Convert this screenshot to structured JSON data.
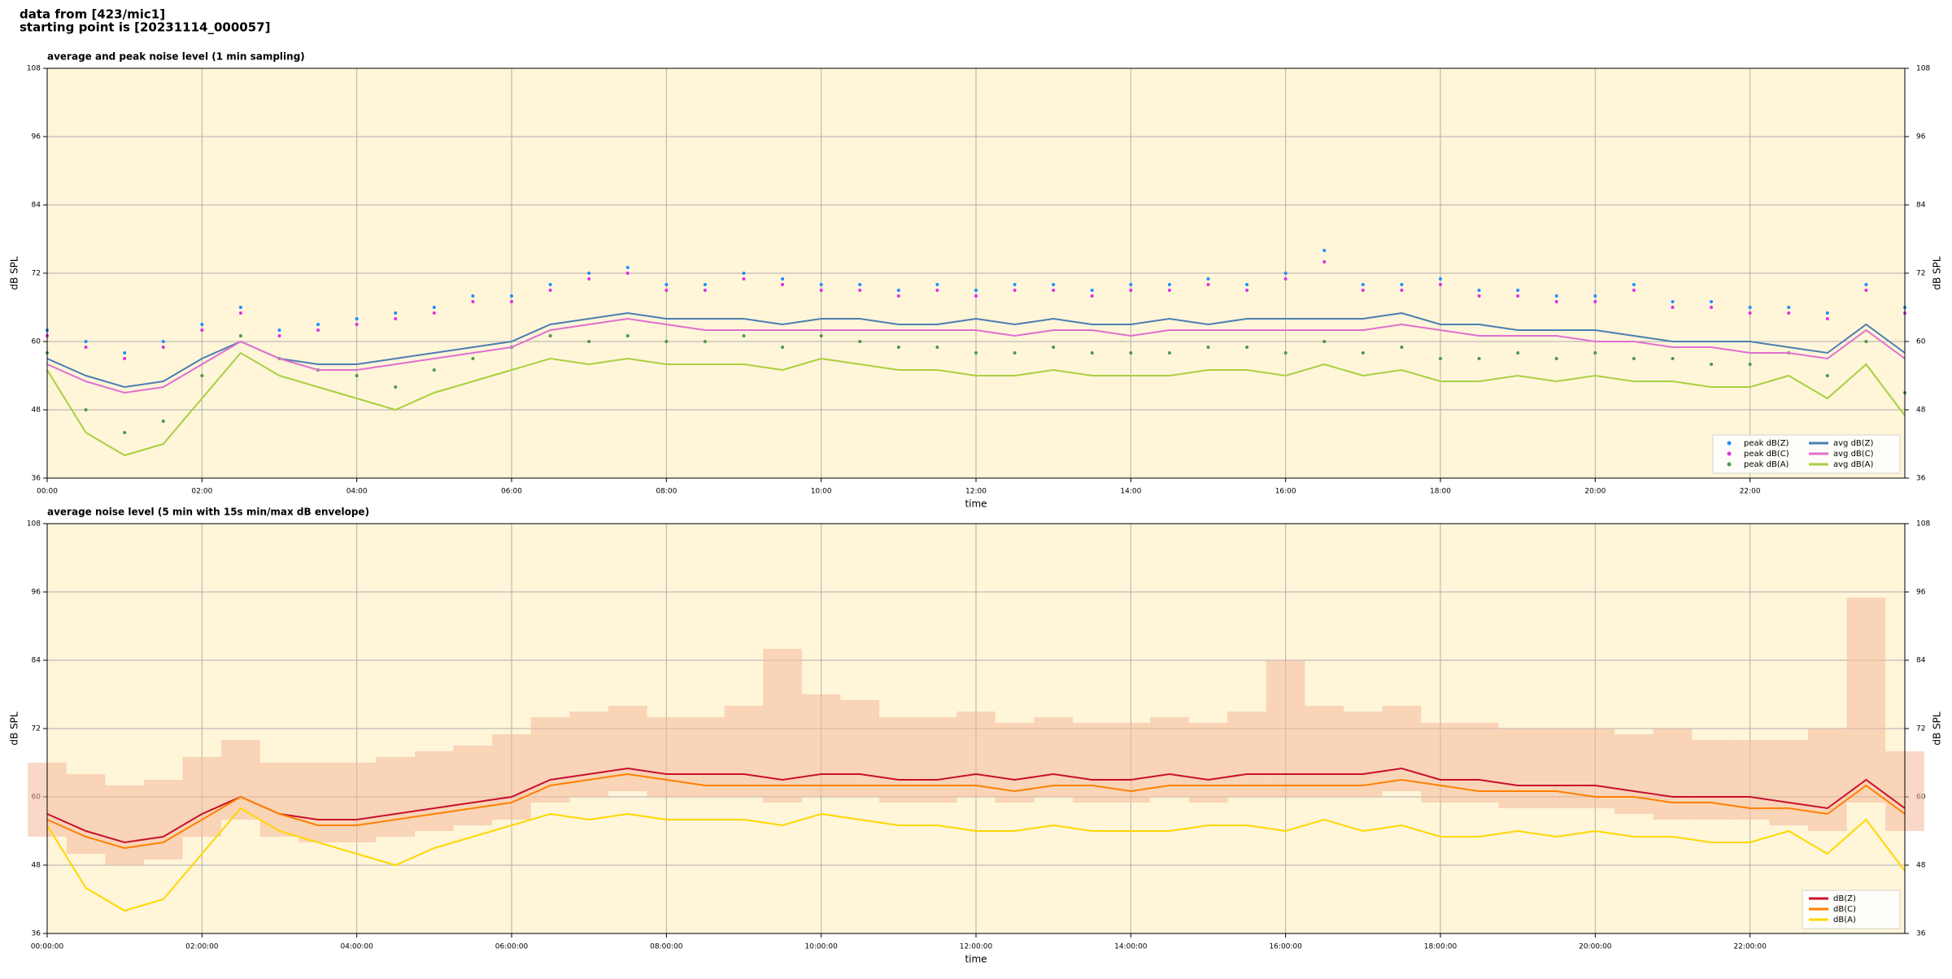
{
  "header": {
    "lines": [
      "data from [423/mic1]",
      "starting point is [20231114_000057]"
    ]
  },
  "chart_data": [
    {
      "type": "line",
      "title": "average and peak noise level (1 min sampling)",
      "xlabel": "time",
      "ylabel": "dB SPL",
      "y2label": "dB SPL",
      "xlim": [
        0,
        24
      ],
      "ylim": [
        36,
        108
      ],
      "y2lim": [
        36,
        108
      ],
      "xticks": [
        {
          "value": 0,
          "label": "00:00"
        },
        {
          "value": 2,
          "label": "02:00"
        },
        {
          "value": 4,
          "label": "04:00"
        },
        {
          "value": 6,
          "label": "06:00"
        },
        {
          "value": 8,
          "label": "08:00"
        },
        {
          "value": 10,
          "label": "10:00"
        },
        {
          "value": 12,
          "label": "12:00"
        },
        {
          "value": 14,
          "label": "14:00"
        },
        {
          "value": 16,
          "label": "16:00"
        },
        {
          "value": 18,
          "label": "18:00"
        },
        {
          "value": 20,
          "label": "20:00"
        },
        {
          "value": 22,
          "label": "22:00"
        }
      ],
      "yticks": [
        36,
        48,
        60,
        72,
        84,
        96,
        108
      ],
      "y2ticks": [
        36,
        48,
        60,
        72,
        84,
        96,
        108
      ],
      "grid": true,
      "background": "#fff5d9",
      "legend": "lower right",
      "legend_columns": 2,
      "x": [
        0,
        0.5,
        1,
        1.5,
        2,
        2.5,
        3,
        3.5,
        4,
        4.5,
        5,
        5.5,
        6,
        6.5,
        7,
        7.5,
        8,
        8.5,
        9,
        9.5,
        10,
        10.5,
        11,
        11.5,
        12,
        12.5,
        13,
        13.5,
        14,
        14.5,
        15,
        15.5,
        16,
        16.5,
        17,
        17.5,
        18,
        18.5,
        19,
        19.5,
        20,
        20.5,
        21,
        21.5,
        22,
        22.5,
        23,
        23.5,
        24
      ],
      "series": [
        {
          "name": "peak dB(Z)",
          "style": "dots",
          "color": "#1e90ff",
          "values": [
            62,
            60,
            58,
            60,
            63,
            66,
            62,
            63,
            64,
            65,
            66,
            68,
            68,
            70,
            72,
            73,
            70,
            70,
            72,
            71,
            70,
            70,
            69,
            70,
            69,
            70,
            70,
            69,
            70,
            70,
            71,
            70,
            72,
            76,
            70,
            70,
            71,
            69,
            69,
            68,
            68,
            70,
            67,
            67,
            66,
            66,
            65,
            70,
            66
          ]
        },
        {
          "name": "peak dB(C)",
          "style": "dots",
          "color": "#e030e0",
          "values": [
            61,
            59,
            57,
            59,
            62,
            65,
            61,
            62,
            63,
            64,
            65,
            67,
            67,
            69,
            71,
            72,
            69,
            69,
            71,
            70,
            69,
            69,
            68,
            69,
            68,
            69,
            69,
            68,
            69,
            69,
            70,
            69,
            71,
            74,
            69,
            69,
            70,
            68,
            68,
            67,
            67,
            69,
            66,
            66,
            65,
            65,
            64,
            69,
            65
          ]
        },
        {
          "name": "peak dB(A)",
          "style": "dots",
          "color": "#4a9a4a",
          "values": [
            58,
            48,
            44,
            46,
            54,
            61,
            57,
            55,
            54,
            52,
            55,
            57,
            59,
            61,
            60,
            61,
            60,
            60,
            61,
            59,
            61,
            60,
            59,
            59,
            58,
            58,
            59,
            58,
            58,
            58,
            59,
            59,
            58,
            60,
            58,
            59,
            57,
            57,
            58,
            57,
            58,
            57,
            57,
            56,
            56,
            58,
            54,
            60,
            51
          ]
        },
        {
          "name": "avg dB(Z)",
          "style": "line",
          "color": "#4a7fb0",
          "values": [
            57,
            54,
            52,
            53,
            57,
            60,
            57,
            56,
            56,
            57,
            58,
            59,
            60,
            63,
            64,
            65,
            64,
            64,
            64,
            63,
            64,
            64,
            63,
            63,
            64,
            63,
            64,
            63,
            63,
            64,
            63,
            64,
            64,
            64,
            64,
            65,
            63,
            63,
            62,
            62,
            62,
            61,
            60,
            60,
            60,
            59,
            58,
            63,
            58
          ]
        },
        {
          "name": "avg dB(C)",
          "style": "line",
          "color": "#e070d0",
          "values": [
            56,
            53,
            51,
            52,
            56,
            60,
            57,
            55,
            55,
            56,
            57,
            58,
            59,
            62,
            63,
            64,
            63,
            62,
            62,
            62,
            62,
            62,
            62,
            62,
            62,
            61,
            62,
            62,
            61,
            62,
            62,
            62,
            62,
            62,
            62,
            63,
            62,
            61,
            61,
            61,
            60,
            60,
            59,
            59,
            58,
            58,
            57,
            62,
            57
          ]
        },
        {
          "name": "avg dB(A)",
          "style": "line",
          "color": "#a8d040",
          "values": [
            55,
            44,
            40,
            42,
            50,
            58,
            54,
            52,
            50,
            48,
            51,
            53,
            55,
            57,
            56,
            57,
            56,
            56,
            56,
            55,
            57,
            56,
            55,
            55,
            54,
            54,
            55,
            54,
            54,
            54,
            55,
            55,
            54,
            56,
            54,
            55,
            53,
            53,
            54,
            53,
            54,
            53,
            53,
            52,
            52,
            54,
            50,
            56,
            47
          ]
        }
      ]
    },
    {
      "type": "line",
      "title": "average noise level (5 min with 15s min/max dB envelope)",
      "xlabel": "time",
      "ylabel": "dB SPL",
      "y2label": "dB SPL",
      "xlim": [
        0,
        24
      ],
      "ylim": [
        36,
        108
      ],
      "y2lim": [
        36,
        108
      ],
      "xticks": [
        {
          "value": 0,
          "label": "00:00:00"
        },
        {
          "value": 2,
          "label": "02:00:00"
        },
        {
          "value": 4,
          "label": "04:00:00"
        },
        {
          "value": 6,
          "label": "06:00:00"
        },
        {
          "value": 8,
          "label": "08:00:00"
        },
        {
          "value": 10,
          "label": "10:00:00"
        },
        {
          "value": 12,
          "label": "12:00:00"
        },
        {
          "value": 14,
          "label": "14:00:00"
        },
        {
          "value": 16,
          "label": "16:00:00"
        },
        {
          "value": 18,
          "label": "18:00:00"
        },
        {
          "value": 20,
          "label": "20:00:00"
        },
        {
          "value": 22,
          "label": "22:00:00"
        }
      ],
      "yticks": [
        36,
        48,
        60,
        72,
        84,
        96,
        108
      ],
      "y2ticks": [
        36,
        48,
        60,
        72,
        84,
        96,
        108
      ],
      "grid": true,
      "background": "#fff5d9",
      "legend": "lower right",
      "legend_columns": 1,
      "envelope_color": "#f4b89a",
      "x": [
        0,
        0.5,
        1,
        1.5,
        2,
        2.5,
        3,
        3.5,
        4,
        4.5,
        5,
        5.5,
        6,
        6.5,
        7,
        7.5,
        8,
        8.5,
        9,
        9.5,
        10,
        10.5,
        11,
        11.5,
        12,
        12.5,
        13,
        13.5,
        14,
        14.5,
        15,
        15.5,
        16,
        16.5,
        17,
        17.5,
        18,
        18.5,
        19,
        19.5,
        20,
        20.5,
        21,
        21.5,
        22,
        22.5,
        23,
        23.5,
        24
      ],
      "series": [
        {
          "name": "dB(Z)",
          "style": "line",
          "color": "#c8102e",
          "values": [
            57,
            54,
            52,
            53,
            57,
            60,
            57,
            56,
            56,
            57,
            58,
            59,
            60,
            63,
            64,
            65,
            64,
            64,
            64,
            63,
            64,
            64,
            63,
            63,
            64,
            63,
            64,
            63,
            63,
            64,
            63,
            64,
            64,
            64,
            64,
            65,
            63,
            63,
            62,
            62,
            62,
            61,
            60,
            60,
            60,
            59,
            58,
            63,
            58
          ],
          "min": [
            53,
            50,
            48,
            49,
            53,
            56,
            53,
            52,
            52,
            53,
            54,
            55,
            56,
            59,
            60,
            61,
            60,
            60,
            60,
            59,
            60,
            60,
            59,
            59,
            60,
            59,
            60,
            59,
            59,
            60,
            59,
            60,
            60,
            60,
            60,
            61,
            59,
            59,
            58,
            58,
            58,
            57,
            56,
            56,
            56,
            55,
            54,
            59,
            54
          ],
          "max": [
            66,
            64,
            62,
            63,
            67,
            70,
            66,
            66,
            66,
            67,
            68,
            69,
            71,
            74,
            75,
            76,
            74,
            74,
            76,
            86,
            78,
            77,
            74,
            74,
            75,
            73,
            74,
            73,
            73,
            74,
            73,
            75,
            84,
            76,
            75,
            76,
            73,
            73,
            72,
            72,
            72,
            71,
            72,
            70,
            70,
            70,
            72,
            95,
            68
          ]
        },
        {
          "name": "dB(C)",
          "style": "line",
          "color": "#ff8000",
          "values": [
            56,
            53,
            51,
            52,
            56,
            60,
            57,
            55,
            55,
            56,
            57,
            58,
            59,
            62,
            63,
            64,
            63,
            62,
            62,
            62,
            62,
            62,
            62,
            62,
            62,
            61,
            62,
            62,
            61,
            62,
            62,
            62,
            62,
            62,
            62,
            63,
            62,
            61,
            61,
            61,
            60,
            60,
            59,
            59,
            58,
            58,
            57,
            62,
            57
          ]
        },
        {
          "name": "dB(A)",
          "style": "line",
          "color": "#ffd700",
          "values": [
            55,
            44,
            40,
            42,
            50,
            58,
            54,
            52,
            50,
            48,
            51,
            53,
            55,
            57,
            56,
            57,
            56,
            56,
            56,
            55,
            57,
            56,
            55,
            55,
            54,
            54,
            55,
            54,
            54,
            54,
            55,
            55,
            54,
            56,
            54,
            55,
            53,
            53,
            54,
            53,
            54,
            53,
            53,
            52,
            52,
            54,
            50,
            56,
            47
          ]
        }
      ]
    }
  ]
}
